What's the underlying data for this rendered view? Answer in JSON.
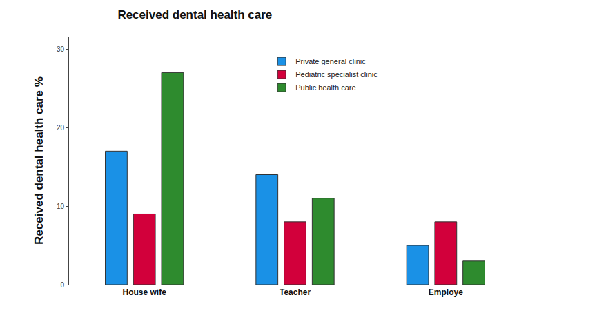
{
  "chart_data": {
    "type": "bar",
    "title": "Received dental health care",
    "y_label": "Received dental health care %",
    "categories": [
      "House wife",
      "Teacher",
      "Employe"
    ],
    "series": [
      {
        "name": "Private general clinic",
        "color": "#1a91e6",
        "values": [
          17,
          14,
          5
        ]
      },
      {
        "name": "Pediatric specialist clinic",
        "color": "#d2003b",
        "values": [
          9,
          8,
          8
        ]
      },
      {
        "name": "Public health care",
        "color": "#2e8b2e",
        "values": [
          27,
          11,
          3
        ]
      }
    ],
    "ylim": [
      0,
      31.6
    ],
    "yticks": [
      0,
      10,
      20,
      30
    ],
    "grid": false,
    "legend": "top"
  }
}
